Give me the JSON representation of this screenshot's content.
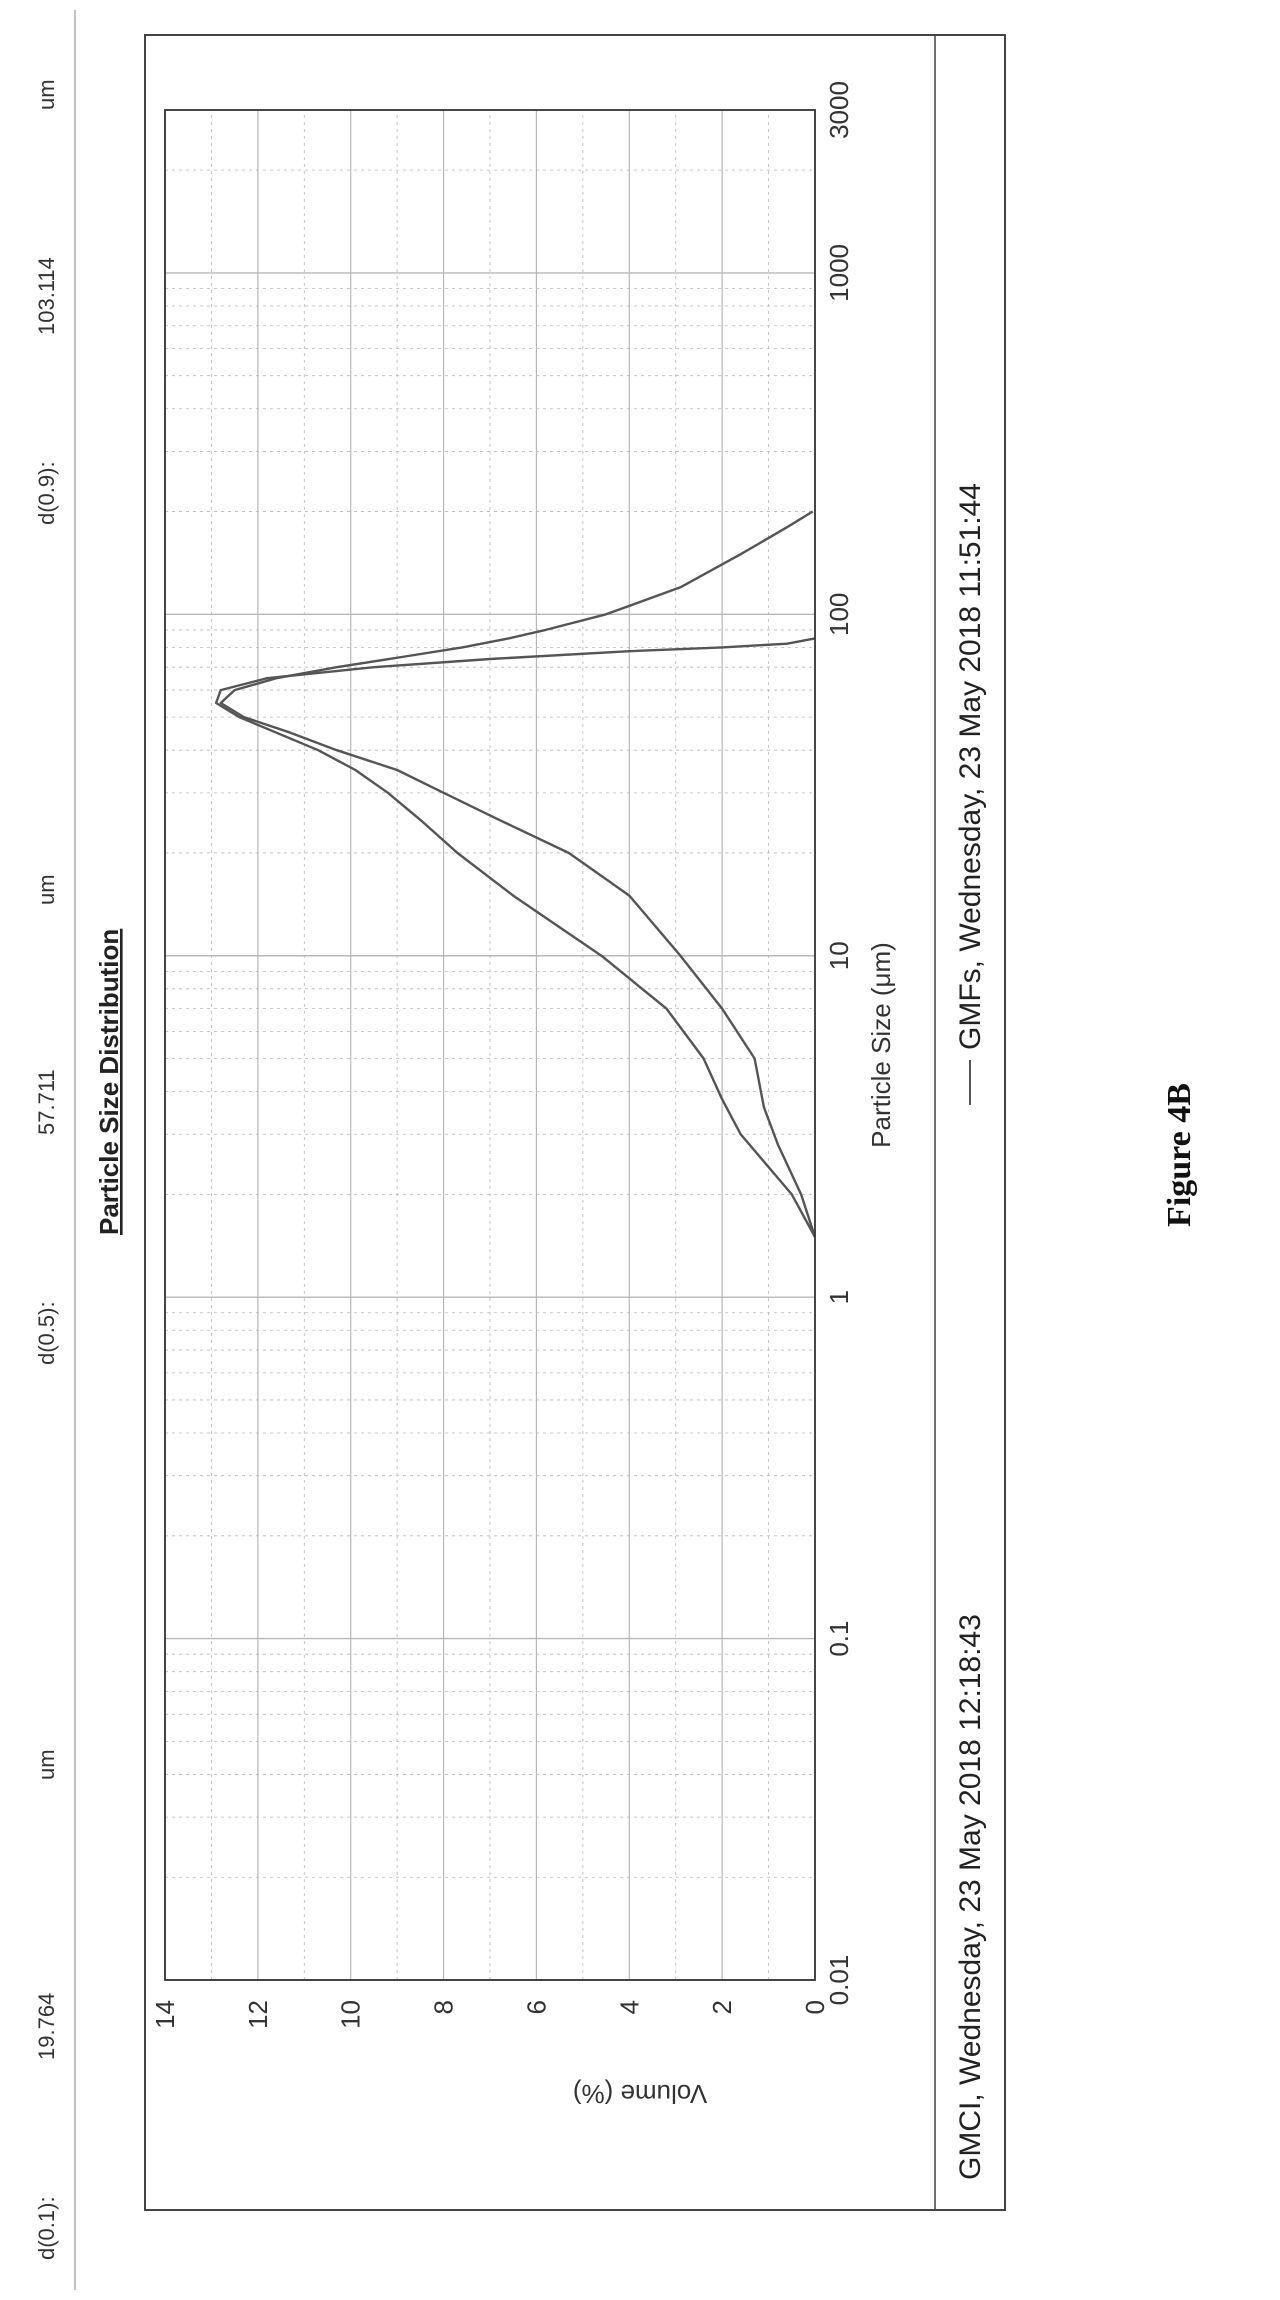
{
  "stats": {
    "d10_label": "d(0.1):",
    "d10_value": "19.764",
    "d10_unit": "um",
    "d50_label": "d(0.5):",
    "d50_value": "57.711",
    "d50_unit": "um",
    "d90_label": "d(0.9):",
    "d90_value": "103.114",
    "d90_unit": "um"
  },
  "figure_caption": "Figure 4B",
  "colors": {
    "curve": "#555555",
    "grid": "#b8b8b8",
    "frame": "#444444"
  },
  "chart_data": {
    "type": "line",
    "title": "Particle Size Distribution",
    "xlabel": "Particle Size (μm)",
    "ylabel": "Volume (%)",
    "x_scale": "log",
    "xlim": [
      0.01,
      3000
    ],
    "ylim": [
      0,
      14
    ],
    "x_ticks": [
      0.01,
      0.1,
      1,
      10,
      100,
      1000,
      3000
    ],
    "x_tick_labels": [
      "0.01",
      "0.1",
      "1",
      "10",
      "100",
      "1000",
      "3000"
    ],
    "y_ticks": [
      0,
      2,
      4,
      6,
      8,
      10,
      12,
      14
    ],
    "y_tick_labels": [
      "0",
      "2",
      "4",
      "6",
      "8",
      "10",
      "12",
      "14"
    ],
    "grid": true,
    "legend_position": "bottom",
    "series": [
      {
        "name": "GMCI, Wednesday, 23 May 2018 12:18:43",
        "x": [
          1.5,
          2.0,
          2.8,
          3.6,
          5.0,
          7.0,
          10.0,
          15.0,
          20.0,
          25.0,
          30.0,
          35.0,
          40.0,
          45.0,
          50.0,
          55.0,
          60.0,
          65.0,
          70.0,
          75.0,
          80.0,
          85.0,
          90.0,
          100.0,
          120.0,
          150.0,
          180.0,
          200.0
        ],
        "y": [
          0,
          0.3,
          0.8,
          1.1,
          1.3,
          2.0,
          2.9,
          4.0,
          5.3,
          6.8,
          8.0,
          9.0,
          10.3,
          11.3,
          12.3,
          12.8,
          12.5,
          11.6,
          10.3,
          8.9,
          7.6,
          6.6,
          5.8,
          4.5,
          2.9,
          1.6,
          0.6,
          0.05
        ]
      },
      {
        "name": "GMFs, Wednesday, 23 May 2018 11:51:44",
        "x": [
          1.5,
          2.0,
          3.0,
          3.8,
          5.0,
          7.0,
          10.0,
          15.0,
          20.0,
          25.0,
          30.0,
          35.0,
          40.0,
          45.0,
          50.0,
          55.0,
          60.0,
          65.0,
          70.0,
          74.0,
          78.0,
          80.0,
          82.0,
          85.0
        ],
        "y": [
          0,
          0.5,
          1.6,
          2.0,
          2.4,
          3.2,
          4.6,
          6.5,
          7.7,
          8.5,
          9.2,
          9.9,
          10.7,
          11.6,
          12.4,
          12.9,
          12.8,
          11.8,
          9.5,
          7.0,
          4.0,
          2.0,
          0.6,
          0.0
        ]
      }
    ]
  }
}
